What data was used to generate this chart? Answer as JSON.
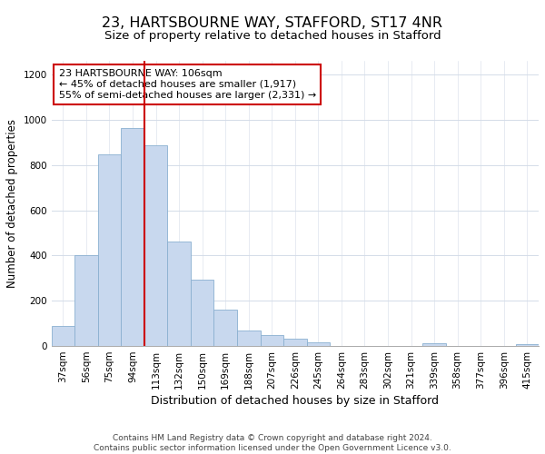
{
  "title": "23, HARTSBOURNE WAY, STAFFORD, ST17 4NR",
  "subtitle": "Size of property relative to detached houses in Stafford",
  "xlabel": "Distribution of detached houses by size in Stafford",
  "ylabel": "Number of detached properties",
  "categories": [
    "37sqm",
    "56sqm",
    "75sqm",
    "94sqm",
    "113sqm",
    "132sqm",
    "150sqm",
    "169sqm",
    "188sqm",
    "207sqm",
    "226sqm",
    "245sqm",
    "264sqm",
    "283sqm",
    "302sqm",
    "321sqm",
    "339sqm",
    "358sqm",
    "377sqm",
    "396sqm",
    "415sqm"
  ],
  "values": [
    90,
    400,
    845,
    965,
    885,
    460,
    295,
    160,
    70,
    50,
    32,
    18,
    0,
    0,
    0,
    0,
    12,
    0,
    0,
    0,
    8
  ],
  "bar_color": "#c8d8ee",
  "bar_edge_color": "#8ab0d0",
  "vline_x_pos": 3.5,
  "vline_color": "#cc0000",
  "annotation_line1": "23 HARTSBOURNE WAY: 106sqm",
  "annotation_line2": "← 45% of detached houses are smaller (1,917)",
  "annotation_line3": "55% of semi-detached houses are larger (2,331) →",
  "annotation_box_edgecolor": "#cc0000",
  "annotation_box_facecolor": "#ffffff",
  "ylim": [
    0,
    1260
  ],
  "yticks": [
    0,
    200,
    400,
    600,
    800,
    1000,
    1200
  ],
  "background_color": "#ffffff",
  "grid_color": "#d4dce8",
  "footer_text": "Contains HM Land Registry data © Crown copyright and database right 2024.\nContains public sector information licensed under the Open Government Licence v3.0.",
  "title_fontsize": 11.5,
  "subtitle_fontsize": 9.5,
  "xlabel_fontsize": 9,
  "ylabel_fontsize": 8.5,
  "tick_fontsize": 7.5,
  "annotation_fontsize": 8,
  "footer_fontsize": 6.5
}
